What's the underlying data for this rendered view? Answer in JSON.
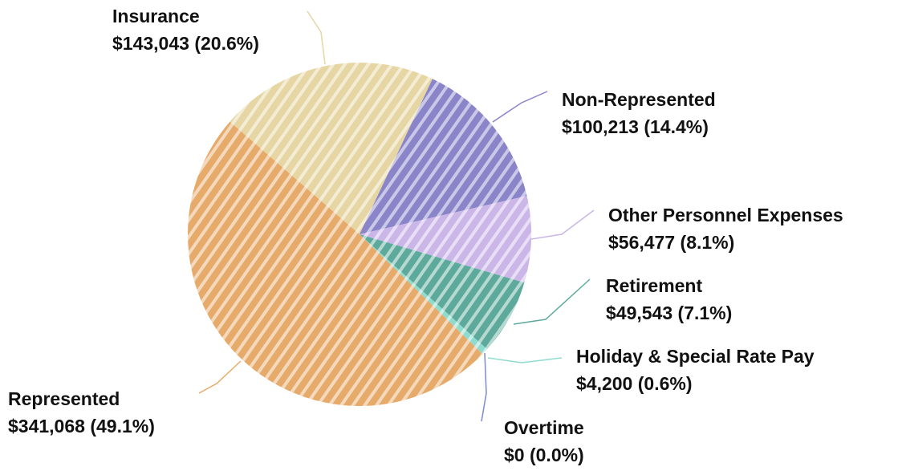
{
  "chart_data": {
    "type": "pie",
    "categories": [
      "Insurance",
      "Non-Represented",
      "Other Personnel Expenses",
      "Retirement",
      "Holiday & Special Rate Pay",
      "Overtime",
      "Represented"
    ],
    "values": [
      143043,
      100213,
      56477,
      49543,
      4200,
      0,
      341068
    ],
    "value_labels": [
      "$143,043 (20.6%)",
      "$100,213 (14.4%)",
      "$56,477 (8.1%)",
      "$49,543 (7.1%)",
      "$4,200 (0.6%)",
      "$0 (0.0%)",
      "$341,068 (49.1%)"
    ],
    "colors": [
      "#e6d6a4",
      "#8a84c9",
      "#cbb6e8",
      "#5daa9c",
      "#8fdccf",
      "#7d8bd1",
      "#e6ab6b"
    ]
  }
}
